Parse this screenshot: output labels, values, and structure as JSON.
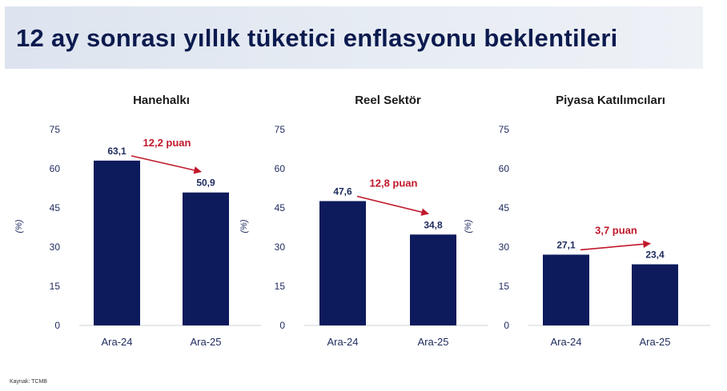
{
  "page": {
    "title": "12 ay sonrası yıllık tüketici enflasyonu beklentileri",
    "source": "Kaynak: TCMB"
  },
  "colors": {
    "bar": "#0d1a5c",
    "axis_text": "#1e2a5e",
    "annotation": "#c0192b",
    "title": "#0b1b4f"
  },
  "chart_data": [
    {
      "type": "bar",
      "title": "Hanehalkı",
      "ylabel": "(%)",
      "ylim": [
        0,
        75
      ],
      "yticks": [
        0,
        15,
        30,
        45,
        60,
        75
      ],
      "categories": [
        "Ara-24",
        "Ara-25"
      ],
      "values": [
        63.1,
        50.9
      ],
      "value_labels": [
        "63,1",
        "50,9"
      ],
      "annotation": "12,2 puan"
    },
    {
      "type": "bar",
      "title": "Reel Sektör",
      "ylabel": "(%)",
      "ylim": [
        0,
        75
      ],
      "yticks": [
        0,
        15,
        30,
        45,
        60,
        75
      ],
      "categories": [
        "Ara-24",
        "Ara-25"
      ],
      "values": [
        47.6,
        34.8
      ],
      "value_labels": [
        "47,6",
        "34,8"
      ],
      "annotation": "12,8 puan"
    },
    {
      "type": "bar",
      "title": "Piyasa Katılımcıları",
      "ylabel": "(%)",
      "ylim": [
        0,
        75
      ],
      "yticks": [
        0,
        15,
        30,
        45,
        60,
        75
      ],
      "categories": [
        "Ara-24",
        "Ara-25"
      ],
      "values": [
        27.1,
        23.4
      ],
      "value_labels": [
        "27,1",
        "23,4"
      ],
      "annotation": "3,7 puan"
    }
  ]
}
